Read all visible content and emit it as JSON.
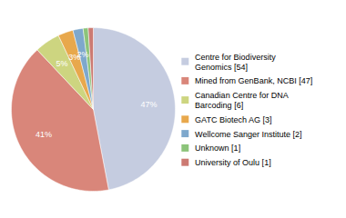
{
  "chart_data": {
    "type": "pie",
    "categories": [
      "Centre for Biodiversity\nGenomics [54]",
      "Mined from GenBank, NCBI [47]",
      "Canadian Centre for DNA\nBarcoding [6]",
      "GATC Biotech AG [3]",
      "Wellcome Sanger Institute [2]",
      "Unknown [1]",
      "University of Oulu [1]"
    ],
    "values": [
      47,
      41,
      5,
      3,
      2,
      1,
      1
    ],
    "value_labels": [
      "47%",
      "41%",
      "5%",
      "3%",
      "2%",
      null,
      null
    ],
    "colors": [
      "#c5cce0",
      "#d9867a",
      "#cdd580",
      "#e8a84c",
      "#7ea8cc",
      "#8cc47a",
      "#cc7a72"
    ],
    "data_labels": true,
    "legend": "right"
  }
}
